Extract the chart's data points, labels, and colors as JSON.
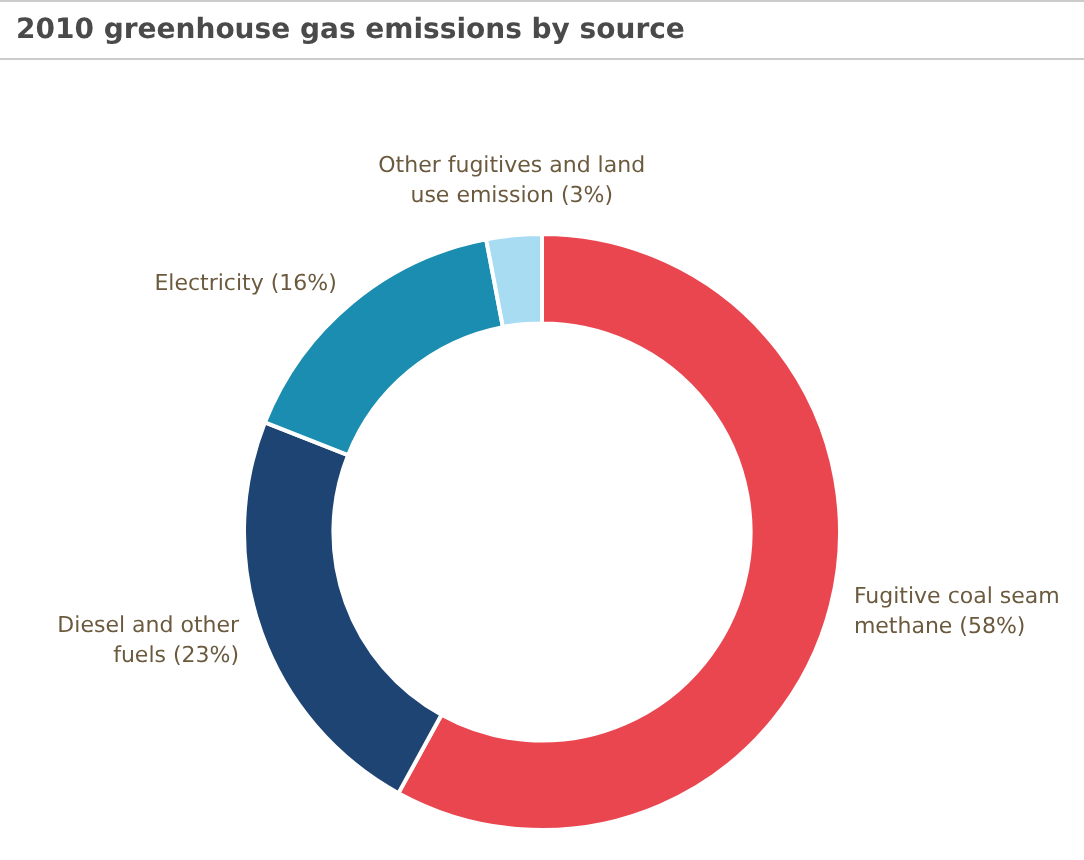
{
  "chart_data": {
    "type": "donut",
    "title": "2010 greenhouse gas emissions by source",
    "categories": [
      "Fugitive coal seam methane",
      "Diesel and other fuels",
      "Electricity",
      "Other fugitives and land use emission"
    ],
    "values": [
      58,
      23,
      16,
      3
    ],
    "colors": [
      "#e9464f",
      "#1d4472",
      "#1b8db0",
      "#a8dcf3"
    ],
    "value_labels": [
      "(58%)",
      "(23%)",
      "(16%)",
      "(3%)"
    ]
  }
}
